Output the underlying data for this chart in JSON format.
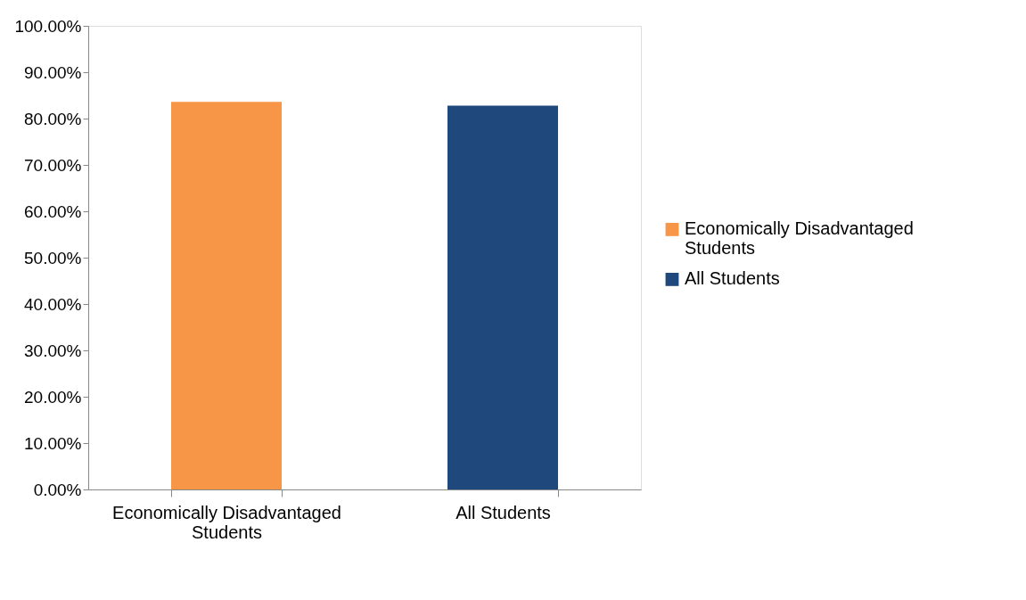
{
  "chart_data": {
    "type": "bar",
    "categories": [
      "Economically Disadvantaged Students",
      "All Students"
    ],
    "series": [
      {
        "name": "Economically Disadvantaged Students",
        "color": "#f79646",
        "values": [
          83.6,
          null
        ]
      },
      {
        "name": "All Students",
        "color": "#1f497d",
        "values": [
          null,
          82.8
        ]
      }
    ],
    "ylim": [
      0,
      100
    ],
    "yticks": [
      {
        "value": 0,
        "label": "0.00%"
      },
      {
        "value": 10,
        "label": "10.00%"
      },
      {
        "value": 20,
        "label": "20.00%"
      },
      {
        "value": 30,
        "label": "30.00%"
      },
      {
        "value": 40,
        "label": "40.00%"
      },
      {
        "value": 50,
        "label": "50.00%"
      },
      {
        "value": 60,
        "label": "60.00%"
      },
      {
        "value": 70,
        "label": "70.00%"
      },
      {
        "value": 80,
        "label": "80.00%"
      },
      {
        "value": 90,
        "label": "90.00%"
      },
      {
        "value": 100,
        "label": "100.00%"
      }
    ],
    "grid": false,
    "legend": "right"
  }
}
